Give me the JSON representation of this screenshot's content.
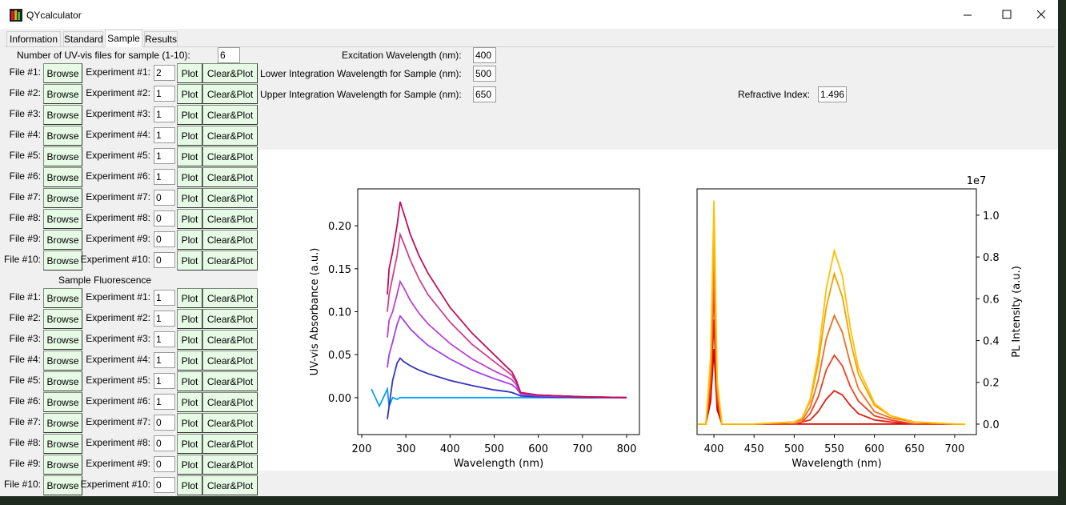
{
  "window": {
    "title": "QYcalculator"
  },
  "tabs": [
    "Information",
    "Standard",
    "Sample",
    "Results"
  ],
  "fields": {
    "num_files_label": "Number of UV-vis files for sample (1-10):",
    "num_files": "6",
    "excitation_label": "Excitation Wavelength (nm):",
    "excitation": "400",
    "lower_label": "Lower Integration Wavelength for Sample (nm):",
    "lower": "500",
    "upper_label": "Upper Integration Wavelength for Sample (nm):",
    "upper": "650",
    "refractive_label": "Refractive Index:",
    "refractive": "1.496"
  },
  "buttons": {
    "browse": "Browse",
    "plot": "Plot",
    "clear_plot": "Clear&Plot"
  },
  "file_rows": [
    {
      "file": "File #1:",
      "experiment": "Experiment #1:"
    },
    {
      "file": "File #2:",
      "experiment": "Experiment #2:"
    },
    {
      "file": "File #3:",
      "experiment": "Experiment #3:"
    },
    {
      "file": "File #4:",
      "experiment": "Experiment #4:"
    },
    {
      "file": "File #5:",
      "experiment": "Experiment #5:"
    },
    {
      "file": "File #6:",
      "experiment": "Experiment #6:"
    },
    {
      "file": "File #7:",
      "experiment": "Experiment #7:"
    },
    {
      "file": "File #8:",
      "experiment": "Experiment #8:"
    },
    {
      "file": "File #9:",
      "experiment": "Experiment #9:"
    },
    {
      "file": "File #10:",
      "experiment": "Experiment #10:"
    }
  ],
  "uvvis_values": [
    "2",
    "1",
    "1",
    "1",
    "1",
    "1",
    "0",
    "0",
    "0",
    "0"
  ],
  "fluorescence_title": "Sample Fluorescence",
  "fluorescence_values": [
    "1",
    "1",
    "1",
    "1",
    "1",
    "1",
    "0",
    "0",
    "0",
    "0"
  ],
  "chart_data": [
    {
      "type": "line",
      "xlabel": "Wavelength (nm)",
      "ylabel": "UV-vis Absorbance (a.u.)",
      "yaxis_side": "left",
      "x": [
        222,
        240,
        258,
        262,
        270,
        280,
        287,
        295,
        310,
        330,
        350,
        400,
        450,
        500,
        530,
        540,
        550,
        560,
        600,
        700,
        800
      ],
      "xlim": [
        191,
        829
      ],
      "ylim": [
        -0.043,
        0.243
      ],
      "xticks": [
        200,
        300,
        400,
        500,
        600,
        700,
        800
      ],
      "yticks": [
        {
          "value": 0,
          "label": "0.00"
        },
        0.05,
        {
          "value": 0.1,
          "label": "0.10"
        },
        0.15,
        {
          "value": 0.2,
          "label": "0.20"
        }
      ],
      "series": [
        {
          "color": "#0aa0f0",
          "values": [
            0.01,
            -0.01,
            0.01,
            -0.01,
            0,
            -0.002,
            0,
            0,
            0,
            0,
            0,
            0,
            0,
            0,
            0,
            0,
            0,
            0,
            0,
            0,
            0
          ]
        },
        {
          "color": "#3434c0",
          "values": [
            null,
            null,
            -0.025,
            -0.01,
            0.02,
            0.04,
            0.046,
            0.042,
            0.037,
            0.032,
            0.028,
            0.02,
            0.014,
            0.009,
            0.007,
            0.006,
            0.004,
            0.002,
            0.001,
            0,
            0
          ]
        },
        {
          "color": "#a040f0",
          "values": [
            null,
            null,
            0.035,
            0.05,
            0.065,
            0.085,
            0.095,
            0.09,
            0.08,
            0.07,
            0.061,
            0.045,
            0.032,
            0.022,
            0.017,
            0.015,
            0.011,
            0.004,
            0.002,
            0.001,
            0
          ]
        },
        {
          "color": "#c040d0",
          "values": [
            null,
            null,
            0.07,
            0.09,
            0.1,
            0.12,
            0.135,
            0.128,
            0.113,
            0.098,
            0.086,
            0.063,
            0.045,
            0.031,
            0.024,
            0.021,
            0.015,
            0.005,
            0.003,
            0.001,
            0
          ]
        },
        {
          "color": "#d0408c",
          "values": [
            null,
            null,
            0.1,
            0.12,
            0.14,
            0.165,
            0.19,
            0.18,
            0.16,
            0.138,
            0.12,
            0.088,
            0.062,
            0.042,
            0.03,
            0.026,
            0.018,
            0.005,
            0.003,
            0.001,
            0
          ]
        },
        {
          "color": "#c0105a",
          "values": [
            null,
            null,
            0.12,
            0.15,
            0.17,
            0.2,
            0.228,
            0.215,
            0.19,
            0.165,
            0.145,
            0.105,
            0.075,
            0.05,
            0.035,
            0.03,
            0.02,
            0.006,
            0.003,
            0.001,
            0
          ]
        }
      ]
    },
    {
      "type": "line",
      "xlabel": "Wavelength (nm)",
      "ylabel": "PL Intensity (a.u.)",
      "yaxis_side": "right",
      "y_offset_label": "1e7",
      "x": [
        380,
        390,
        396,
        400,
        404,
        410,
        450,
        500,
        510,
        520,
        530,
        540,
        550,
        560,
        570,
        580,
        600,
        620,
        650,
        700,
        713
      ],
      "xlim": [
        379,
        727
      ],
      "ylim": [
        -0.05,
        1.126
      ],
      "xticks": [
        400,
        450,
        500,
        550,
        600,
        650,
        700
      ],
      "yticks": [
        {
          "value": 0,
          "label": "0.0"
        },
        0.2,
        0.4,
        0.6,
        0.8,
        {
          "value": 1,
          "label": "1.0"
        }
      ],
      "series": [
        {
          "color": "#d00000",
          "values": [
            0,
            0,
            0.11,
            0.36,
            0.07,
            0,
            0,
            0,
            0,
            0,
            0,
            0,
            0,
            0,
            0,
            0,
            0,
            0,
            0,
            0,
            0
          ]
        },
        {
          "color": "#e02010",
          "values": [
            0,
            0,
            0.15,
            0.5,
            0.1,
            0,
            0,
            0,
            0.01,
            0.02,
            0.06,
            0.12,
            0.16,
            0.14,
            0.09,
            0.05,
            0.02,
            0.01,
            0,
            0,
            0
          ]
        },
        {
          "color": "#f04020",
          "values": [
            0,
            0,
            0.2,
            0.65,
            0.13,
            0,
            0,
            0,
            0.01,
            0.05,
            0.13,
            0.26,
            0.33,
            0.28,
            0.18,
            0.11,
            0.04,
            0.02,
            0,
            0,
            0
          ]
        },
        {
          "color": "#f07020",
          "values": [
            0,
            0,
            0.24,
            0.8,
            0.16,
            0,
            0,
            0.01,
            0.02,
            0.08,
            0.21,
            0.41,
            0.52,
            0.44,
            0.29,
            0.17,
            0.06,
            0.03,
            0.01,
            0,
            0
          ]
        },
        {
          "color": "#f5a000",
          "values": [
            0,
            0,
            0.29,
            0.95,
            0.19,
            0,
            0,
            0.01,
            0.03,
            0.11,
            0.29,
            0.56,
            0.72,
            0.61,
            0.4,
            0.24,
            0.09,
            0.04,
            0.01,
            0,
            0
          ]
        },
        {
          "color": "#ffc000",
          "values": [
            0,
            0,
            0.32,
            1.07,
            0.21,
            0,
            0,
            0.01,
            0.03,
            0.12,
            0.33,
            0.65,
            0.83,
            0.71,
            0.46,
            0.27,
            0.1,
            0.04,
            0.01,
            0,
            0
          ]
        }
      ]
    }
  ]
}
